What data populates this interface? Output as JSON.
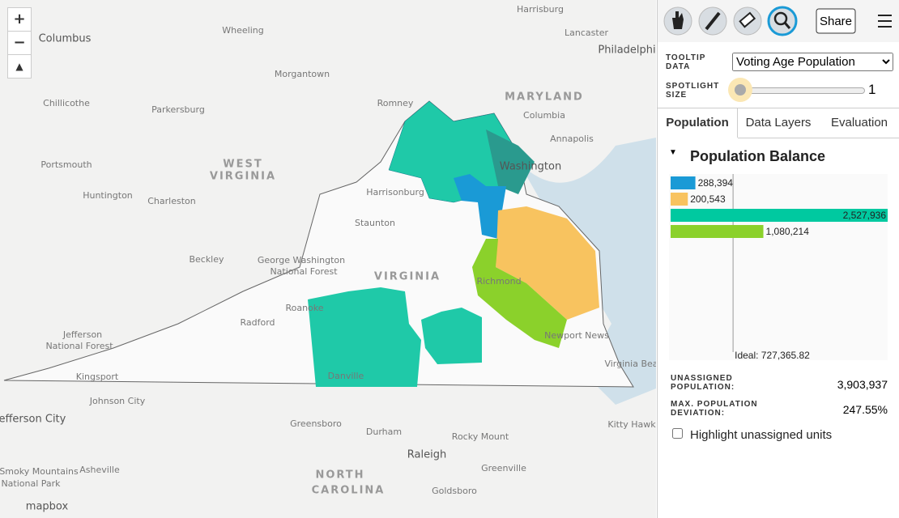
{
  "map": {
    "zoom_in": "+",
    "zoom_out": "−",
    "labels": [
      "Harrisburg",
      "Lancaster",
      "Philadelphia",
      "Columbus",
      "Wheeling",
      "Morgantown",
      "MARYLAND",
      "Chillicothe",
      "Parkersburg",
      "Romney",
      "Columbia",
      "Annapolis",
      "WEST",
      "VIRGINIA",
      "Portsmouth",
      "Huntington",
      "Charleston",
      "Washington",
      "Harrisonburg",
      "Staunton",
      "Beckley",
      "George Washington",
      "National Forest",
      "VIRGINIA",
      "Richmond",
      "Roanoke",
      "Radford",
      "Jefferson",
      "National Forest",
      "Newport News",
      "Virginia Beach",
      "Kingsport",
      "Danville",
      "Johnson City",
      "Jefferson City",
      "Greensboro",
      "Durham",
      "Kitty Hawk",
      "Rocky Mount",
      "Raleigh",
      "Asheville",
      "Smoky Mountains",
      "National Park",
      "Greenville",
      "NORTH",
      "CAROLINA",
      "Goldsboro",
      "mapbox"
    ]
  },
  "toolbar": {
    "share": "Share"
  },
  "settings": {
    "tooltip_label": "TOOLTIP DATA",
    "tooltip_value": "Voting Age Population",
    "spotlight_label": "SPOTLIGHT SIZE",
    "spotlight_value": "1"
  },
  "tabs": [
    "Population",
    "Data Layers",
    "Evaluation"
  ],
  "population_balance": {
    "title": "Population Balance",
    "values": [
      288394,
      200543,
      2527936,
      1080214
    ],
    "value_labels": [
      "288,394",
      "200,543",
      "2,527,936",
      "1,080,214"
    ],
    "colors": [
      "#1a9ad6",
      "#f8c35f",
      "#00c9a0",
      "#8bd12b"
    ],
    "ideal": {
      "value": 727365.82,
      "label": "Ideal: 727,365.82"
    }
  },
  "stats": {
    "unassigned_label": "UNASSIGNED POPULATION:",
    "unassigned_value": "3,903,937",
    "deviation_label": "MAX. POPULATION DEVIATION:",
    "deviation_value": "247.55%"
  },
  "highlight_label": "Highlight unassigned units"
}
